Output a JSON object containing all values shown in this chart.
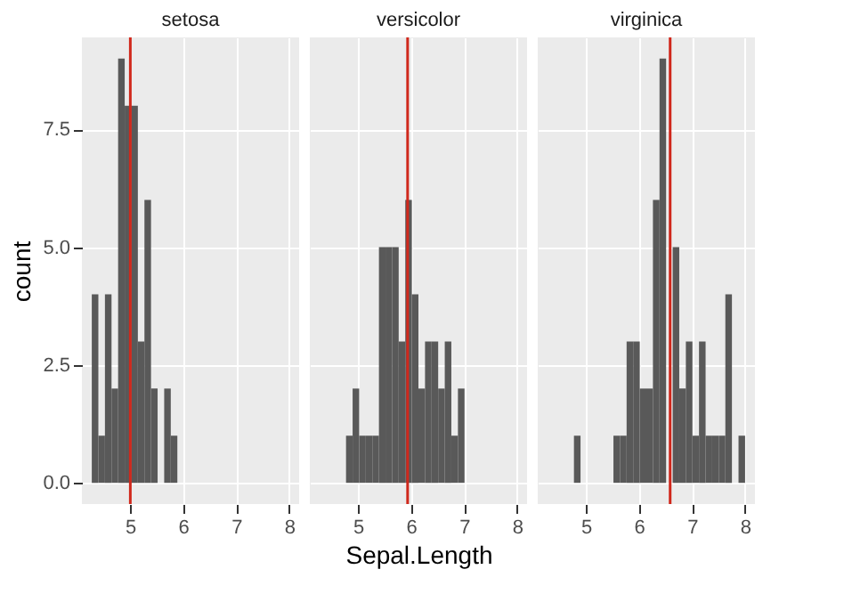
{
  "chart_data": [
    {
      "type": "histogram",
      "title": "setosa",
      "ylabel": "count",
      "bins": [
        4.28,
        4.404,
        4.528,
        4.652,
        4.776,
        4.9,
        5.024,
        5.148,
        5.272,
        5.396,
        5.52,
        5.644,
        5.768,
        5.892
      ],
      "values": [
        4,
        1,
        4,
        2,
        9,
        8,
        8,
        3,
        6,
        2,
        0,
        2,
        1
      ],
      "color": "#595959",
      "xlim": [
        4.094,
        8.186
      ],
      "xticks": [
        5,
        6,
        7,
        8
      ],
      "ylim": [
        -0.45,
        9.45
      ],
      "yticks": [
        {
          "value": 0,
          "label": "0.0"
        },
        {
          "value": 2.5,
          "label": "2.5"
        },
        {
          "value": 5,
          "label": "5.0"
        },
        {
          "value": 7.5,
          "label": "7.5"
        }
      ],
      "grid": true,
      "ref_lines": [
        {
          "axis": "x",
          "value": 5.006,
          "color": "#d0281c"
        }
      ]
    },
    {
      "type": "histogram",
      "title": "versicolor",
      "xlabel": "Sepal.Length",
      "bins": [
        4.776,
        4.9,
        5.024,
        5.148,
        5.272,
        5.396,
        5.52,
        5.644,
        5.768,
        5.892,
        6.016,
        6.14,
        6.264,
        6.388,
        6.512,
        6.636,
        6.76,
        6.884,
        7.008
      ],
      "values": [
        1,
        2,
        1,
        1,
        1,
        5,
        5,
        5,
        3,
        6,
        4,
        2,
        3,
        3,
        2,
        3,
        1,
        2
      ],
      "color": "#595959",
      "xlim": [
        4.094,
        8.186
      ],
      "xticks": [
        5,
        6,
        7,
        8
      ],
      "ylim": [
        -0.45,
        9.45
      ],
      "yticks": [
        0,
        2.5,
        5,
        7.5
      ],
      "grid": true,
      "tick_labels": "x",
      "ref_lines": [
        {
          "axis": "x",
          "value": 5.936,
          "color": "#d0281c"
        }
      ]
    },
    {
      "type": "histogram",
      "title": "virginica",
      "bins": [
        4.776,
        4.9,
        5.024,
        5.148,
        5.272,
        5.396,
        5.52,
        5.644,
        5.768,
        5.892,
        6.016,
        6.14,
        6.264,
        6.388,
        6.512,
        6.636,
        6.76,
        6.884,
        7.008,
        7.132,
        7.256,
        7.38,
        7.504,
        7.628,
        7.752,
        7.876,
        8.0
      ],
      "values": [
        1,
        0,
        0,
        0,
        0,
        0,
        1,
        1,
        3,
        3,
        2,
        2,
        6,
        9,
        0,
        5,
        2,
        3,
        1,
        3,
        1,
        1,
        1,
        4,
        0,
        1
      ],
      "color": "#595959",
      "xlim": [
        4.094,
        8.186
      ],
      "xticks": [
        5,
        6,
        7,
        8
      ],
      "ylim": [
        -0.45,
        9.45
      ],
      "yticks": [
        0,
        2.5,
        5,
        7.5
      ],
      "grid": true,
      "tick_labels": "x",
      "ref_lines": [
        {
          "axis": "x",
          "value": 6.588,
          "color": "#d0281c"
        }
      ]
    }
  ]
}
